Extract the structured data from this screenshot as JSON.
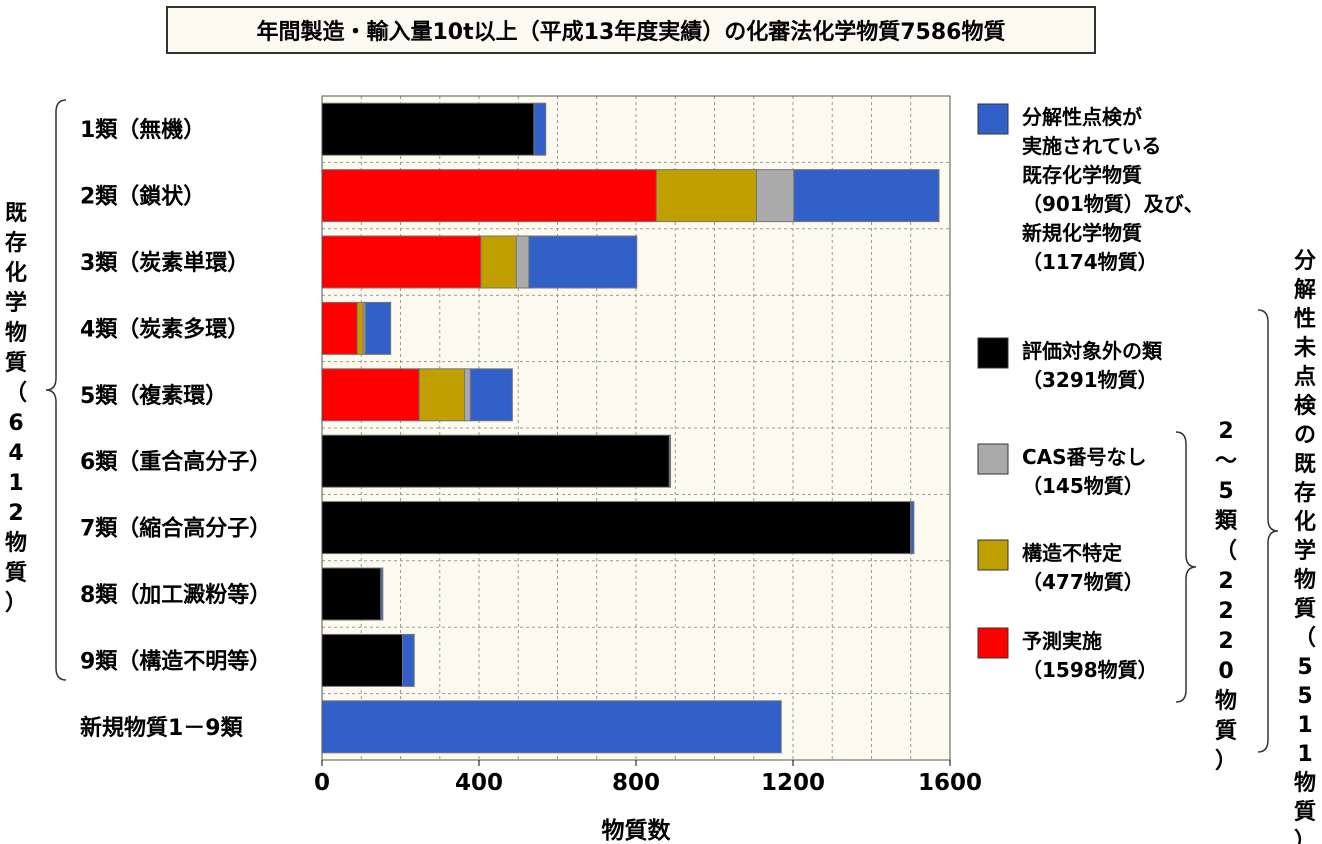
{
  "title": "年間製造・輸入量10t以上（平成13年度実績）の化審法化学物質7586物質",
  "chart_data": {
    "type": "bar",
    "orientation": "horizontal",
    "stacked": true,
    "categories": [
      "1類（無機）",
      "2類（鎖状）",
      "3類（炭素単環）",
      "4類（炭素多環）",
      "5類（複素環）",
      "6類（重合高分子）",
      "7類（縮合高分子）",
      "8類（加工澱粉等）",
      "9類（構造不明等）",
      "新規物質1－9類"
    ],
    "series": [
      {
        "name": "評価対象外の類（3291物質）",
        "color": "#000000",
        "values": [
          540,
          0,
          0,
          0,
          0,
          885,
          1500,
          150,
          205,
          0
        ]
      },
      {
        "name": "予測実施（1598物質）",
        "color": "#ff0000",
        "values": [
          0,
          852,
          405,
          90,
          248,
          0,
          0,
          0,
          0,
          0
        ]
      },
      {
        "name": "構造不特定（477物質）",
        "color": "#bfa000",
        "values": [
          0,
          255,
          90,
          15,
          115,
          0,
          0,
          0,
          0,
          0
        ]
      },
      {
        "name": "CAS番号なし（145物質）",
        "color": "#aaaaaa",
        "values": [
          0,
          95,
          32,
          5,
          15,
          0,
          0,
          0,
          0,
          0
        ]
      },
      {
        "name": "分解性点検が実施されている既存化学物質（901物質）及び、新規化学物質（1174物質）",
        "color": "#3060c8",
        "values": [
          30,
          370,
          275,
          65,
          107,
          3,
          8,
          5,
          30,
          1170
        ]
      }
    ],
    "xlabel": "物質数",
    "xlim": [
      0,
      1600
    ],
    "xticks": [
      "0",
      "400",
      "800",
      "1200",
      "1600"
    ],
    "grid": true,
    "legend_position": "right"
  },
  "legend": [
    {
      "lines": [
        "分解性点検が",
        "実施されている",
        "既存化学物質",
        "（901物質）及び、",
        "新規化学物質",
        "（1174物質）"
      ],
      "color": "#3060c8"
    },
    {
      "lines": [
        "評価対象外の類",
        "（3291物質）"
      ],
      "color": "#000000"
    },
    {
      "lines": [
        "CAS番号なし",
        "（145物質）"
      ],
      "color": "#aaaaaa"
    },
    {
      "lines": [
        "構造不特定",
        "（477物質）"
      ],
      "color": "#bfa000"
    },
    {
      "lines": [
        "予測実施",
        "（1598物質）"
      ],
      "color": "#ff0000"
    }
  ],
  "brackets": {
    "existing": "既存化学物質（6412物質）",
    "classes25": "2～5類（2220物質）",
    "unchecked": "分解性未点検の既存化学物質（5511物質）"
  }
}
